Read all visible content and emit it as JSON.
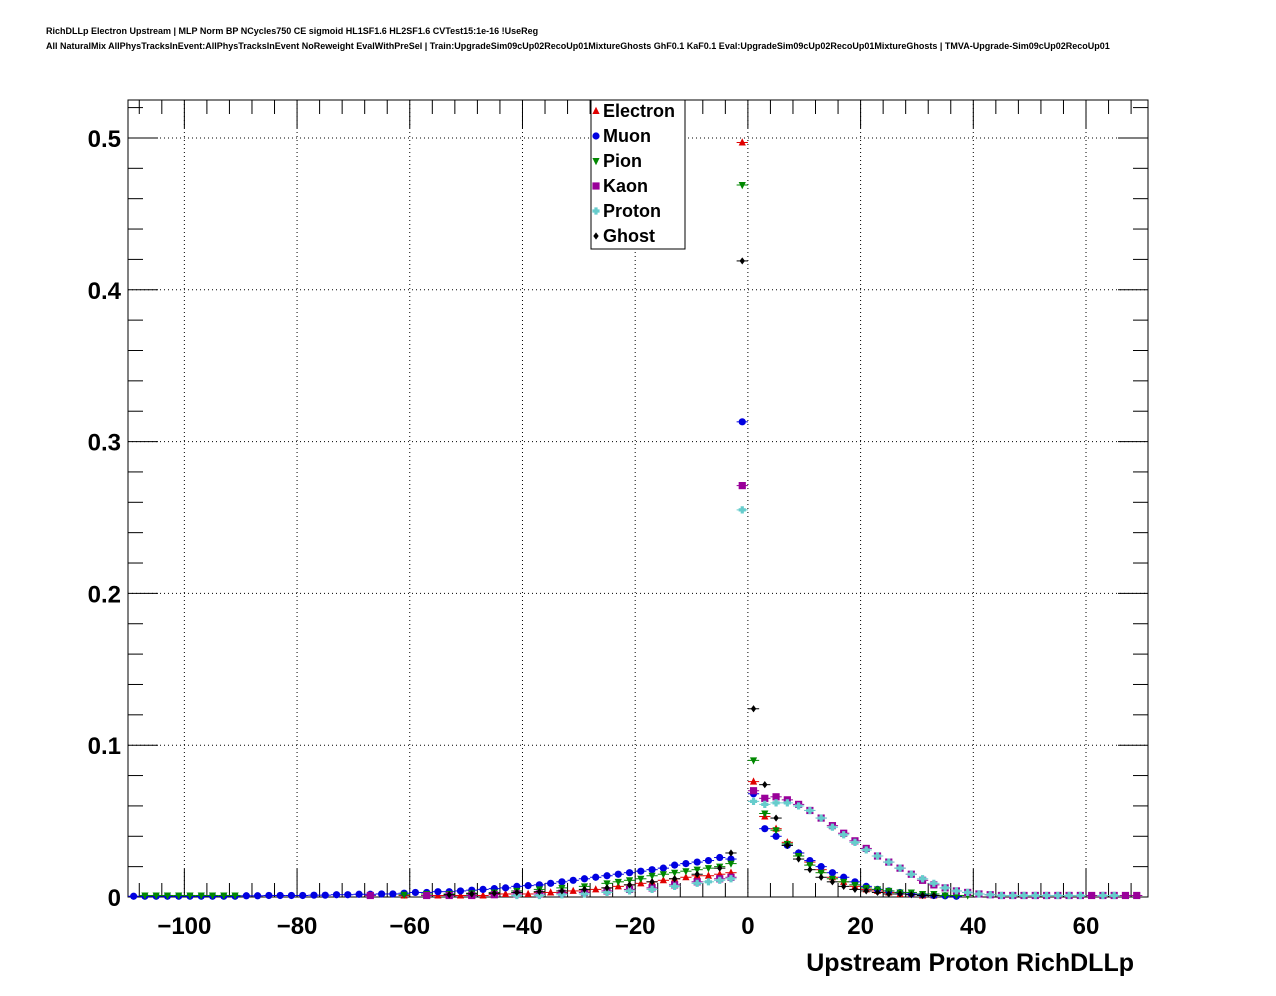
{
  "header": {
    "line1": "RichDLLp Electron Upstream | MLP Norm BP NCycles750 CE sigmoid HL1SF1.6 HL2SF1.6 CVTest15:1e-16 !UseReg",
    "line2": "All NaturalMix AllPhysTracksInEvent:AllPhysTracksInEvent NoReweight EvalWithPreSel | Train:UpgradeSim09cUp02RecoUp01MixtureGhosts GhF0.1 KaF0.1 Eval:UpgradeSim09cUp02RecoUp01MixtureGhosts | TMVA-Upgrade-Sim09cUp02RecoUp01"
  },
  "chart_data": {
    "type": "scatter",
    "title": "",
    "xlabel": "Upstream Proton RichDLLp",
    "ylabel": "",
    "xlim": [
      -110,
      71
    ],
    "ylim": [
      0,
      0.525
    ],
    "grid": true,
    "legend_position": "top-center",
    "x_ticks": [
      -100,
      -80,
      -60,
      -40,
      -20,
      0,
      20,
      40,
      60
    ],
    "x_tick_labels": [
      "−100",
      "−80",
      "−60",
      "−40",
      "−20",
      "0",
      "20",
      "40",
      "60"
    ],
    "y_ticks": [
      0,
      0.1,
      0.2,
      0.3,
      0.4,
      0.5
    ],
    "y_tick_labels": [
      "0",
      "0.1",
      "0.2",
      "0.3",
      "0.4",
      "0.5"
    ],
    "series": [
      {
        "name": "Electron",
        "color": "#e00000",
        "marker": "triangle-up",
        "points": [
          [
            -61,
            0.001
          ],
          [
            -57,
            0.001
          ],
          [
            -55,
            0.001
          ],
          [
            -53,
            0.001
          ],
          [
            -51,
            0.001
          ],
          [
            -49,
            0.001
          ],
          [
            -47,
            0.001
          ],
          [
            -45,
            0.002
          ],
          [
            -43,
            0.002
          ],
          [
            -41,
            0.002
          ],
          [
            -39,
            0.002
          ],
          [
            -37,
            0.003
          ],
          [
            -35,
            0.003
          ],
          [
            -33,
            0.003
          ],
          [
            -31,
            0.004
          ],
          [
            -29,
            0.004
          ],
          [
            -27,
            0.005
          ],
          [
            -25,
            0.006
          ],
          [
            -23,
            0.007
          ],
          [
            -21,
            0.008
          ],
          [
            -19,
            0.009
          ],
          [
            -17,
            0.01
          ],
          [
            -15,
            0.011
          ],
          [
            -13,
            0.012
          ],
          [
            -11,
            0.013
          ],
          [
            -9,
            0.014
          ],
          [
            -7,
            0.014
          ],
          [
            -5,
            0.015
          ],
          [
            -3,
            0.016
          ],
          [
            -1,
            0.497
          ],
          [
            1,
            0.076
          ],
          [
            3,
            0.053
          ],
          [
            5,
            0.045
          ],
          [
            7,
            0.036
          ],
          [
            9,
            0.029
          ],
          [
            11,
            0.023
          ],
          [
            13,
            0.018
          ],
          [
            15,
            0.013
          ],
          [
            17,
            0.01
          ],
          [
            19,
            0.007
          ],
          [
            21,
            0.005
          ],
          [
            23,
            0.004
          ],
          [
            25,
            0.003
          ],
          [
            27,
            0.002
          ],
          [
            29,
            0.002
          ],
          [
            31,
            0.001
          ],
          [
            33,
            0.001
          ]
        ]
      },
      {
        "name": "Muon",
        "color": "#0000e0",
        "marker": "circle",
        "points": [
          [
            -109,
            0.0005
          ],
          [
            -107,
            0.0005
          ],
          [
            -105,
            0.0005
          ],
          [
            -103,
            0.0005
          ],
          [
            -101,
            0.0005
          ],
          [
            -99,
            0.0005
          ],
          [
            -97,
            0.0005
          ],
          [
            -95,
            0.0005
          ],
          [
            -93,
            0.0005
          ],
          [
            -91,
            0.0005
          ],
          [
            -89,
            0.0008
          ],
          [
            -87,
            0.0008
          ],
          [
            -85,
            0.001
          ],
          [
            -83,
            0.001
          ],
          [
            -81,
            0.001
          ],
          [
            -79,
            0.001
          ],
          [
            -77,
            0.0012
          ],
          [
            -75,
            0.0012
          ],
          [
            -73,
            0.0015
          ],
          [
            -71,
            0.0015
          ],
          [
            -69,
            0.0018
          ],
          [
            -67,
            0.0018
          ],
          [
            -65,
            0.002
          ],
          [
            -63,
            0.002
          ],
          [
            -61,
            0.0025
          ],
          [
            -59,
            0.003
          ],
          [
            -57,
            0.003
          ],
          [
            -55,
            0.0035
          ],
          [
            -53,
            0.0035
          ],
          [
            -51,
            0.004
          ],
          [
            -49,
            0.0045
          ],
          [
            -47,
            0.005
          ],
          [
            -45,
            0.0055
          ],
          [
            -43,
            0.006
          ],
          [
            -41,
            0.007
          ],
          [
            -39,
            0.0075
          ],
          [
            -37,
            0.008
          ],
          [
            -35,
            0.009
          ],
          [
            -33,
            0.01
          ],
          [
            -31,
            0.011
          ],
          [
            -29,
            0.012
          ],
          [
            -27,
            0.013
          ],
          [
            -25,
            0.014
          ],
          [
            -23,
            0.015
          ],
          [
            -21,
            0.016
          ],
          [
            -19,
            0.017
          ],
          [
            -17,
            0.018
          ],
          [
            -15,
            0.019
          ],
          [
            -13,
            0.021
          ],
          [
            -11,
            0.022
          ],
          [
            -9,
            0.023
          ],
          [
            -7,
            0.024
          ],
          [
            -5,
            0.026
          ],
          [
            -3,
            0.025
          ],
          [
            -1,
            0.313
          ],
          [
            1,
            0.068
          ],
          [
            3,
            0.045
          ],
          [
            5,
            0.04
          ],
          [
            7,
            0.034
          ],
          [
            9,
            0.029
          ],
          [
            11,
            0.024
          ],
          [
            13,
            0.02
          ],
          [
            15,
            0.016
          ],
          [
            17,
            0.013
          ],
          [
            19,
            0.01
          ],
          [
            21,
            0.007
          ],
          [
            23,
            0.005
          ],
          [
            25,
            0.004
          ],
          [
            27,
            0.003
          ],
          [
            29,
            0.002
          ],
          [
            31,
            0.0015
          ],
          [
            33,
            0.001
          ],
          [
            35,
            0.0008
          ],
          [
            37,
            0.0005
          ]
        ]
      },
      {
        "name": "Pion",
        "color": "#008800",
        "marker": "triangle-down",
        "points": [
          [
            -107,
            0.001
          ],
          [
            -105,
            0.001
          ],
          [
            -103,
            0.001
          ],
          [
            -101,
            0.001
          ],
          [
            -99,
            0.001
          ],
          [
            -97,
            0.001
          ],
          [
            -95,
            0.001
          ],
          [
            -93,
            0.001
          ],
          [
            -91,
            0.001
          ],
          [
            -61,
            0.0015
          ],
          [
            -57,
            0.002
          ],
          [
            -53,
            0.002
          ],
          [
            -49,
            0.0025
          ],
          [
            -45,
            0.003
          ],
          [
            -41,
            0.004
          ],
          [
            -37,
            0.005
          ],
          [
            -33,
            0.006
          ],
          [
            -29,
            0.007
          ],
          [
            -25,
            0.009
          ],
          [
            -23,
            0.01
          ],
          [
            -21,
            0.011
          ],
          [
            -19,
            0.012
          ],
          [
            -17,
            0.014
          ],
          [
            -15,
            0.015
          ],
          [
            -13,
            0.016
          ],
          [
            -11,
            0.017
          ],
          [
            -9,
            0.018
          ],
          [
            -7,
            0.019
          ],
          [
            -5,
            0.02
          ],
          [
            -3,
            0.022
          ],
          [
            -1,
            0.469
          ],
          [
            1,
            0.09
          ],
          [
            3,
            0.055
          ],
          [
            5,
            0.044
          ],
          [
            7,
            0.035
          ],
          [
            9,
            0.027
          ],
          [
            11,
            0.021
          ],
          [
            13,
            0.016
          ],
          [
            15,
            0.012
          ],
          [
            17,
            0.01
          ],
          [
            19,
            0.008
          ],
          [
            21,
            0.006
          ],
          [
            23,
            0.005
          ],
          [
            25,
            0.004
          ],
          [
            27,
            0.003
          ],
          [
            29,
            0.003
          ],
          [
            31,
            0.002
          ],
          [
            33,
            0.002
          ],
          [
            35,
            0.001
          ],
          [
            37,
            0.001
          ],
          [
            39,
            0.001
          ]
        ]
      },
      {
        "name": "Kaon",
        "color": "#990099",
        "marker": "square",
        "points": [
          [
            -67,
            0.001
          ],
          [
            -57,
            0.001
          ],
          [
            -53,
            0.001
          ],
          [
            -49,
            0.001
          ],
          [
            -45,
            0.0015
          ],
          [
            -41,
            0.002
          ],
          [
            -37,
            0.002
          ],
          [
            -33,
            0.0025
          ],
          [
            -29,
            0.003
          ],
          [
            -25,
            0.004
          ],
          [
            -21,
            0.005
          ],
          [
            -17,
            0.006
          ],
          [
            -13,
            0.008
          ],
          [
            -9,
            0.01
          ],
          [
            -5,
            0.012
          ],
          [
            -3,
            0.013
          ],
          [
            -1,
            0.271
          ],
          [
            1,
            0.07
          ],
          [
            3,
            0.065
          ],
          [
            5,
            0.066
          ],
          [
            7,
            0.064
          ],
          [
            9,
            0.061
          ],
          [
            11,
            0.057
          ],
          [
            13,
            0.052
          ],
          [
            15,
            0.047
          ],
          [
            17,
            0.042
          ],
          [
            19,
            0.037
          ],
          [
            21,
            0.032
          ],
          [
            23,
            0.027
          ],
          [
            25,
            0.023
          ],
          [
            27,
            0.019
          ],
          [
            29,
            0.015
          ],
          [
            31,
            0.011
          ],
          [
            33,
            0.008
          ],
          [
            35,
            0.006
          ],
          [
            37,
            0.004
          ],
          [
            39,
            0.003
          ],
          [
            41,
            0.002
          ],
          [
            43,
            0.0015
          ],
          [
            45,
            0.001
          ],
          [
            47,
            0.001
          ],
          [
            49,
            0.001
          ],
          [
            51,
            0.001
          ],
          [
            53,
            0.001
          ],
          [
            55,
            0.001
          ],
          [
            57,
            0.001
          ],
          [
            59,
            0.001
          ],
          [
            61,
            0.001
          ],
          [
            63,
            0.001
          ],
          [
            65,
            0.001
          ],
          [
            67,
            0.001
          ],
          [
            69,
            0.001
          ]
        ]
      },
      {
        "name": "Proton",
        "color": "#66cccc",
        "marker": "cross",
        "points": [
          [
            -41,
            0.001
          ],
          [
            -37,
            0.001
          ],
          [
            -33,
            0.0015
          ],
          [
            -29,
            0.002
          ],
          [
            -25,
            0.003
          ],
          [
            -21,
            0.004
          ],
          [
            -17,
            0.005
          ],
          [
            -13,
            0.007
          ],
          [
            -9,
            0.009
          ],
          [
            -7,
            0.01
          ],
          [
            -5,
            0.011
          ],
          [
            -3,
            0.012
          ],
          [
            -1,
            0.255
          ],
          [
            1,
            0.063
          ],
          [
            3,
            0.061
          ],
          [
            5,
            0.062
          ],
          [
            7,
            0.062
          ],
          [
            9,
            0.06
          ],
          [
            11,
            0.057
          ],
          [
            13,
            0.052
          ],
          [
            15,
            0.046
          ],
          [
            17,
            0.041
          ],
          [
            19,
            0.036
          ],
          [
            21,
            0.031
          ],
          [
            23,
            0.027
          ],
          [
            25,
            0.023
          ],
          [
            27,
            0.019
          ],
          [
            29,
            0.015
          ],
          [
            31,
            0.012
          ],
          [
            33,
            0.009
          ],
          [
            35,
            0.006
          ],
          [
            37,
            0.004
          ],
          [
            39,
            0.003
          ],
          [
            41,
            0.002
          ],
          [
            43,
            0.0015
          ],
          [
            45,
            0.001
          ],
          [
            47,
            0.001
          ],
          [
            49,
            0.001
          ],
          [
            51,
            0.001
          ],
          [
            53,
            0.001
          ],
          [
            55,
            0.001
          ],
          [
            57,
            0.001
          ],
          [
            59,
            0.001
          ],
          [
            63,
            0.001
          ],
          [
            65,
            0.001
          ]
        ]
      },
      {
        "name": "Ghost",
        "color": "#000000",
        "marker": "diamond",
        "points": [
          [
            -53,
            0.0015
          ],
          [
            -49,
            0.002
          ],
          [
            -45,
            0.0025
          ],
          [
            -41,
            0.003
          ],
          [
            -37,
            0.0035
          ],
          [
            -33,
            0.004
          ],
          [
            -29,
            0.005
          ],
          [
            -25,
            0.006
          ],
          [
            -21,
            0.008
          ],
          [
            -17,
            0.01
          ],
          [
            -13,
            0.012
          ],
          [
            -9,
            0.015
          ],
          [
            -5,
            0.019
          ],
          [
            -3,
            0.029
          ],
          [
            -1,
            0.419
          ],
          [
            1,
            0.124
          ],
          [
            3,
            0.074
          ],
          [
            5,
            0.052
          ],
          [
            7,
            0.034
          ],
          [
            9,
            0.025
          ],
          [
            11,
            0.018
          ],
          [
            13,
            0.013
          ],
          [
            15,
            0.01
          ],
          [
            17,
            0.007
          ],
          [
            19,
            0.005
          ],
          [
            21,
            0.004
          ],
          [
            23,
            0.003
          ],
          [
            25,
            0.002
          ],
          [
            27,
            0.002
          ],
          [
            29,
            0.0015
          ],
          [
            31,
            0.001
          ],
          [
            33,
            0.001
          ]
        ]
      }
    ]
  }
}
